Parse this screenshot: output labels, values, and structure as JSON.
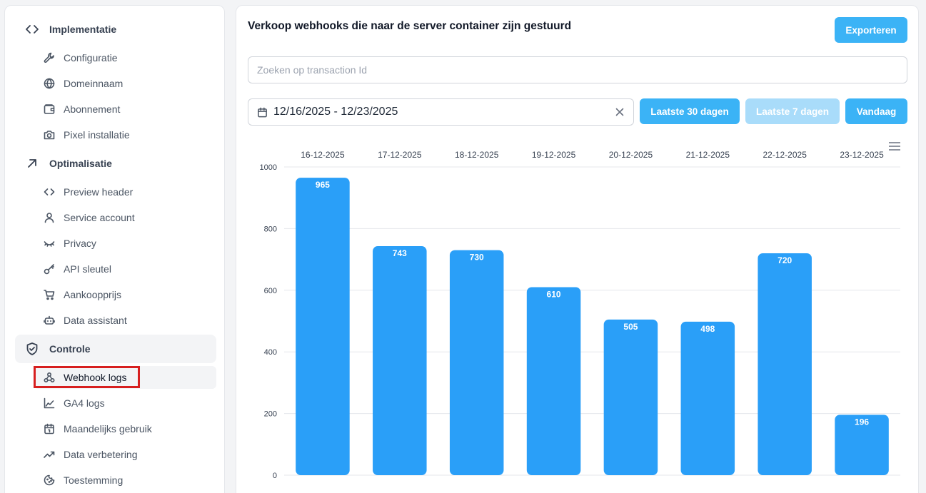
{
  "sidebar": {
    "groups": [
      {
        "label": "Implementatie",
        "icon": "code-icon"
      },
      {
        "label": "Optimalisatie",
        "icon": "arrow-up-right-icon"
      },
      {
        "label": "Controle",
        "icon": "shield-check-icon"
      }
    ],
    "implementatie_items": [
      {
        "label": "Configuratie",
        "icon": "wrench-icon"
      },
      {
        "label": "Domeinnaam",
        "icon": "globe-icon"
      },
      {
        "label": "Abonnement",
        "icon": "wallet-icon"
      },
      {
        "label": "Pixel installatie",
        "icon": "camera-icon"
      }
    ],
    "optimalisatie_items": [
      {
        "label": "Preview header",
        "icon": "code-icon"
      },
      {
        "label": "Service account",
        "icon": "user-icon"
      },
      {
        "label": "Privacy",
        "icon": "eye-closed-icon"
      },
      {
        "label": "API sleutel",
        "icon": "key-icon"
      },
      {
        "label": "Aankoopprijs",
        "icon": "cart-icon"
      },
      {
        "label": "Data assistant",
        "icon": "bot-icon"
      }
    ],
    "controle_items": [
      {
        "label": "Webhook logs",
        "icon": "webhook-icon",
        "active": true
      },
      {
        "label": "GA4 logs",
        "icon": "area-chart-icon"
      },
      {
        "label": "Maandelijks gebruik",
        "icon": "calendar-icon"
      },
      {
        "label": "Data verbetering",
        "icon": "trending-up-icon"
      },
      {
        "label": "Toestemming",
        "icon": "cookie-icon"
      }
    ]
  },
  "main": {
    "title": "Verkoop webhooks die naar de server container zijn gestuurd",
    "export_label": "Exporteren",
    "search_placeholder": "Zoeken op transaction Id",
    "date_range": "12/16/2025 - 12/23/2025",
    "buttons": {
      "last30": "Laatste 30 dagen",
      "last7": "Laatste 7 dagen",
      "today": "Vandaag"
    }
  },
  "colors": {
    "accent": "#3bb3f6",
    "accent_disabled": "#a9dcfa",
    "bar": "#2a9ff8",
    "highlight": "#d71f1f"
  },
  "chart_data": {
    "type": "bar",
    "categories": [
      "16-12-2025",
      "17-12-2025",
      "18-12-2025",
      "19-12-2025",
      "20-12-2025",
      "21-12-2025",
      "22-12-2025",
      "23-12-2025"
    ],
    "values": [
      965,
      743,
      730,
      610,
      505,
      498,
      720,
      196
    ],
    "yticks": [
      0,
      200,
      400,
      600,
      800,
      1000
    ],
    "ylim": [
      0,
      1000
    ],
    "x_axis_position": "top",
    "grid": true,
    "data_labels": true
  }
}
